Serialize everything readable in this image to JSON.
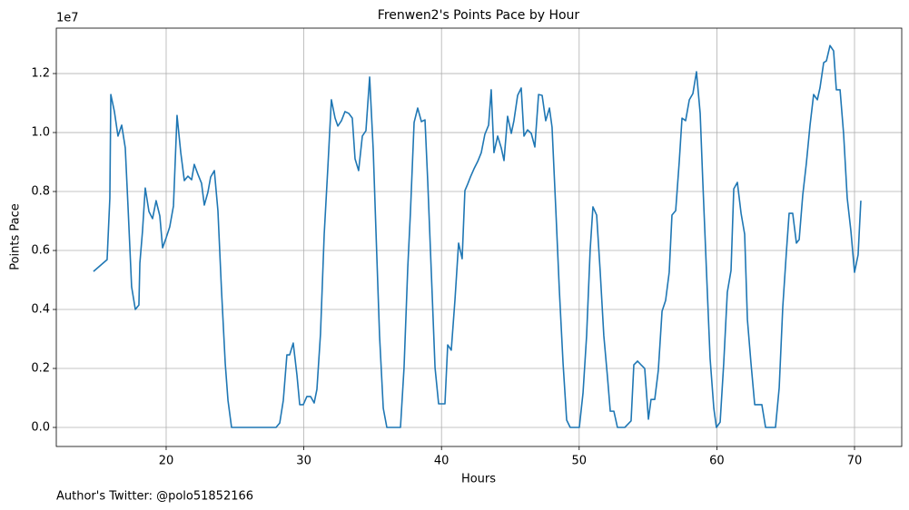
{
  "chart_data": {
    "type": "line",
    "title": "Frenwen2's Points Pace by Hour",
    "x_label": "Hours",
    "y_label": "Points Pace",
    "y_offset_text": "1e7",
    "footer": "Author's Twitter: @polo51852166",
    "color": "#1f77b4",
    "grid": true,
    "xlim": [
      12.02,
      73.43
    ],
    "ylim": [
      -0.0646,
      1.354
    ],
    "xticks": [
      20,
      30,
      40,
      50,
      60,
      70
    ],
    "yticks": [
      {
        "value": 0,
        "label": "0.0"
      },
      0.2,
      0.4,
      0.6,
      0.8,
      {
        "value": 1,
        "label": "1.0"
      },
      1.2
    ],
    "x": [
      14.72,
      15.71,
      15.91,
      15.98,
      16.24,
      16.5,
      16.77,
      17.03,
      17.23,
      17.49,
      17.76,
      18.02,
      18.09,
      18.28,
      18.48,
      18.75,
      19.01,
      19.27,
      19.54,
      19.74,
      20.0,
      20.26,
      20.53,
      20.79,
      21.06,
      21.32,
      21.58,
      21.85,
      22.04,
      22.31,
      22.57,
      22.77,
      23.03,
      23.23,
      23.5,
      23.76,
      24.02,
      24.29,
      24.49,
      24.75,
      27.72,
      27.98,
      28.25,
      28.51,
      28.77,
      28.97,
      29.23,
      29.5,
      29.7,
      29.96,
      30.22,
      30.49,
      30.75,
      30.95,
      31.21,
      31.48,
      31.74,
      32.0,
      32.27,
      32.47,
      32.73,
      32.99,
      33.26,
      33.52,
      33.72,
      33.98,
      34.25,
      34.51,
      34.78,
      35.04,
      35.24,
      35.5,
      35.77,
      36.03,
      37.02,
      37.28,
      37.55,
      37.74,
      38.01,
      38.27,
      38.54,
      38.8,
      39.0,
      39.26,
      39.53,
      39.79,
      40.25,
      40.45,
      40.71,
      40.98,
      41.24,
      41.5,
      41.7,
      41.9,
      42.1,
      42.36,
      42.63,
      42.89,
      43.15,
      43.42,
      43.61,
      43.81,
      44.08,
      44.34,
      44.54,
      44.8,
      45.07,
      45.26,
      45.53,
      45.79,
      45.99,
      46.25,
      46.52,
      46.78,
      47.05,
      47.31,
      47.57,
      47.84,
      48.03,
      48.3,
      48.56,
      48.83,
      49.09,
      49.35,
      50.01,
      50.28,
      50.54,
      50.8,
      51.0,
      51.27,
      51.53,
      51.79,
      52.06,
      52.26,
      52.52,
      52.78,
      53.31,
      53.77,
      53.97,
      54.24,
      54.5,
      54.76,
      55.03,
      55.22,
      55.49,
      55.75,
      56.02,
      56.28,
      56.54,
      56.74,
      57.01,
      57.27,
      57.47,
      57.73,
      58.0,
      58.26,
      58.52,
      58.79,
      58.98,
      59.25,
      59.51,
      59.78,
      59.97,
      60.24,
      60.5,
      60.76,
      61.03,
      61.23,
      61.49,
      61.76,
      62.02,
      62.22,
      62.48,
      62.75,
      63.27,
      63.54,
      64.26,
      64.53,
      64.79,
      65.05,
      65.25,
      65.51,
      65.78,
      65.98,
      66.24,
      66.5,
      66.77,
      67.03,
      67.3,
      67.49,
      67.76,
      67.96,
      68.22,
      68.48,
      68.68,
      68.95,
      69.21,
      69.47,
      69.74,
      70.0,
      70.26,
      70.46
    ],
    "values": [
      0.529,
      0.569,
      0.778,
      1.129,
      1.071,
      0.988,
      1.025,
      0.948,
      0.748,
      0.477,
      0.4,
      0.415,
      0.557,
      0.665,
      0.812,
      0.732,
      0.708,
      0.769,
      0.717,
      0.609,
      0.643,
      0.68,
      0.751,
      1.058,
      0.932,
      0.837,
      0.852,
      0.84,
      0.892,
      0.858,
      0.828,
      0.754,
      0.797,
      0.849,
      0.871,
      0.735,
      0.465,
      0.218,
      0.092,
      0,
      0,
      0,
      0.015,
      0.092,
      0.246,
      0.246,
      0.286,
      0.178,
      0.077,
      0.077,
      0.105,
      0.105,
      0.083,
      0.129,
      0.317,
      0.655,
      0.877,
      1.111,
      1.049,
      1.022,
      1.04,
      1.071,
      1.065,
      1.049,
      0.911,
      0.871,
      0.988,
      1.006,
      1.188,
      0.942,
      0.665,
      0.311,
      0.065,
      0,
      0,
      0.203,
      0.542,
      0.726,
      1.034,
      1.083,
      1.037,
      1.043,
      0.834,
      0.526,
      0.203,
      0.08,
      0.08,
      0.28,
      0.262,
      0.434,
      0.625,
      0.572,
      0.803,
      0.825,
      0.849,
      0.877,
      0.902,
      0.932,
      0.994,
      1.025,
      1.145,
      0.932,
      0.988,
      0.948,
      0.905,
      1.055,
      0.997,
      1.04,
      1.126,
      1.151,
      0.988,
      1.009,
      0.997,
      0.951,
      1.129,
      1.126,
      1.04,
      1.083,
      1.018,
      0.742,
      0.465,
      0.218,
      0.025,
      0,
      0,
      0.117,
      0.311,
      0.603,
      0.748,
      0.72,
      0.526,
      0.311,
      0.169,
      0.055,
      0.055,
      0,
      0,
      0.022,
      0.212,
      0.225,
      0.212,
      0.2,
      0.028,
      0.095,
      0.095,
      0.194,
      0.394,
      0.431,
      0.526,
      0.72,
      0.735,
      0.902,
      1.049,
      1.04,
      1.111,
      1.132,
      1.206,
      1.065,
      0.834,
      0.526,
      0.234,
      0.065,
      0,
      0.018,
      0.218,
      0.458,
      0.532,
      0.809,
      0.831,
      0.726,
      0.655,
      0.366,
      0.218,
      0.077,
      0.077,
      0,
      0,
      0.135,
      0.409,
      0.594,
      0.726,
      0.726,
      0.625,
      0.637,
      0.788,
      0.895,
      1.025,
      1.129,
      1.111,
      1.151,
      1.237,
      1.243,
      1.295,
      1.277,
      1.145,
      1.145,
      0.994,
      0.778,
      0.665,
      0.526,
      0.585,
      0.769
    ]
  }
}
